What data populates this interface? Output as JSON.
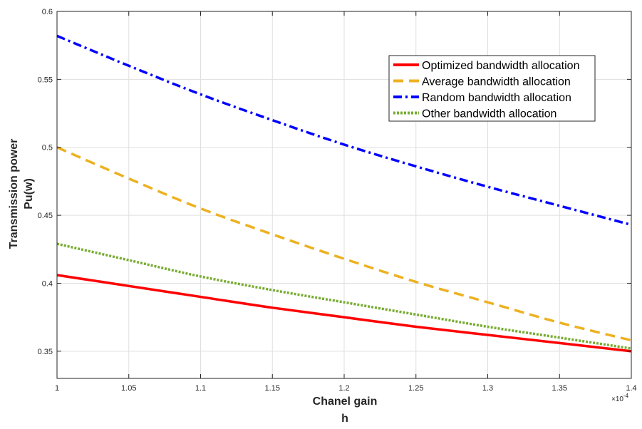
{
  "chart_data": {
    "type": "line",
    "title": "",
    "xlabel": "Chanel gain",
    "xlabel_symbol": "h",
    "ylabel": "Transmission power",
    "ylabel_unit": "Pu(w)",
    "x_multiplier": "×10",
    "x_exponent": "-4",
    "xlim": [
      1,
      1.4
    ],
    "ylim": [
      0.33,
      0.6
    ],
    "xticks": [
      "1",
      "1.05",
      "1.1",
      "1.15",
      "1.2",
      "1.25",
      "1.3",
      "1.35",
      "1.4"
    ],
    "yticks": [
      "0.35",
      "0.4",
      "0.45",
      "0.5",
      "0.55",
      "0.6"
    ],
    "grid": true,
    "legend_position": "top-right",
    "x": [
      1,
      1.05,
      1.1,
      1.15,
      1.2,
      1.25,
      1.3,
      1.35,
      1.4
    ],
    "series": [
      {
        "name": "Optimized bandwidth allocation",
        "color": "#ff0000",
        "style": "solid",
        "values": [
          0.406,
          0.398,
          0.39,
          0.382,
          0.375,
          0.368,
          0.362,
          0.356,
          0.35
        ]
      },
      {
        "name": "Average bandwidth allocation",
        "color": "#edb120",
        "style": "dashed",
        "values": [
          0.5,
          0.477,
          0.455,
          0.436,
          0.418,
          0.401,
          0.386,
          0.371,
          0.358
        ]
      },
      {
        "name": "Random bandwidth allocation",
        "color": "#0000ff",
        "style": "dashdot",
        "values": [
          0.582,
          0.56,
          0.539,
          0.52,
          0.502,
          0.486,
          0.471,
          0.457,
          0.443
        ]
      },
      {
        "name": "Other bandwidth allocation",
        "color": "#77ac30",
        "style": "dotted",
        "values": [
          0.429,
          0.417,
          0.405,
          0.395,
          0.386,
          0.377,
          0.368,
          0.36,
          0.352
        ]
      }
    ]
  }
}
